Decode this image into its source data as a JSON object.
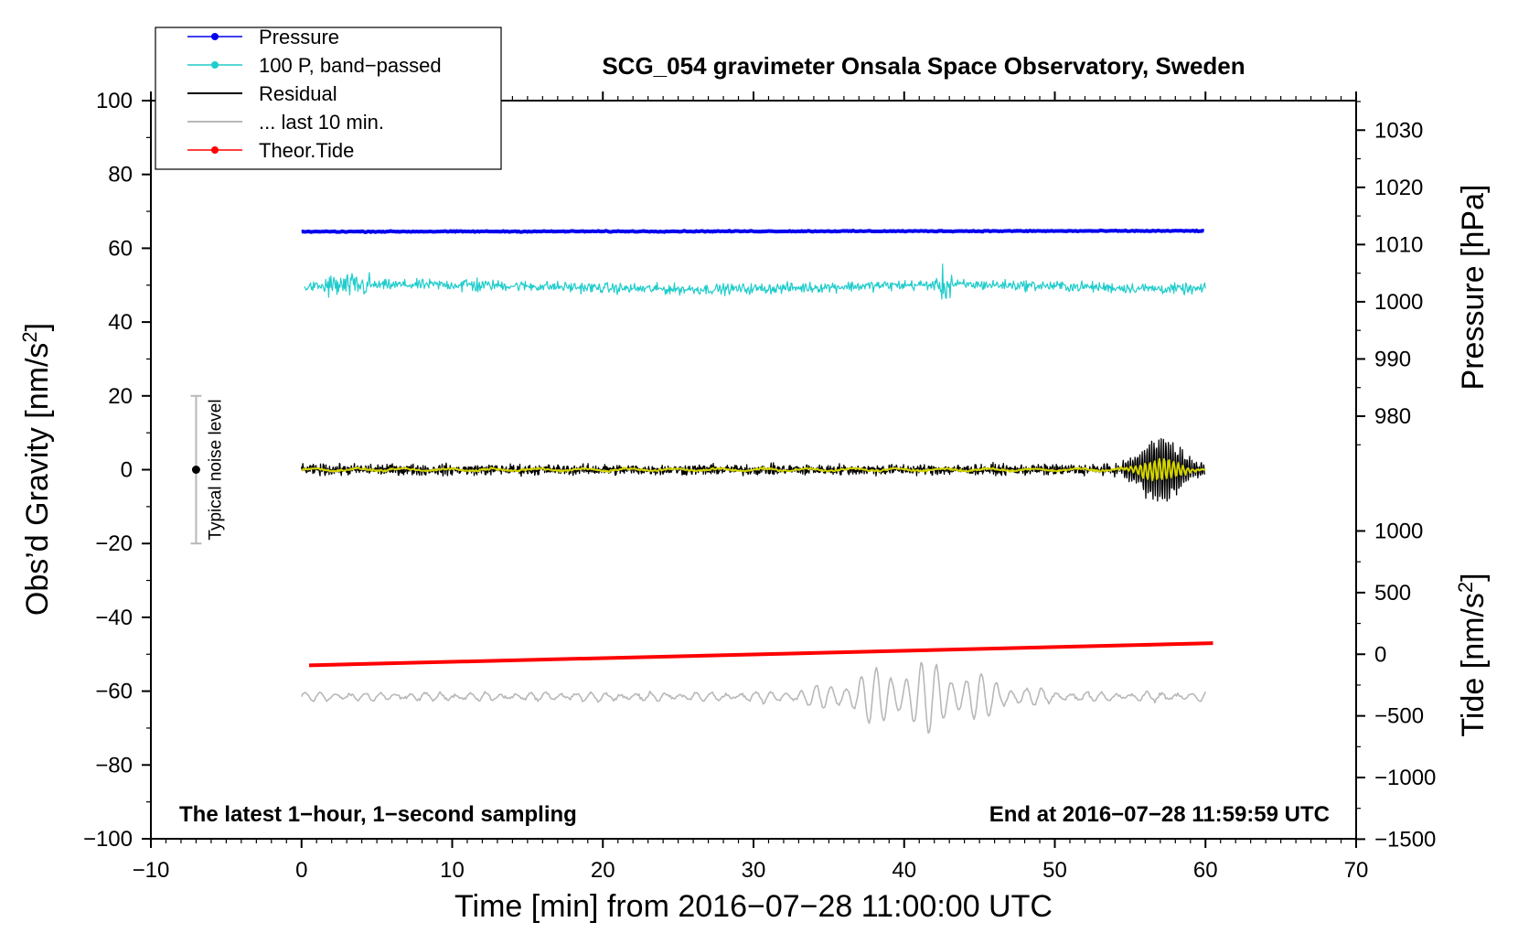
{
  "chart_data": {
    "type": "line",
    "title": "SCG_054 gravimeter Onsala Space Observatory, Sweden",
    "xlabel": "Time [min] from 2016−07−28 11:00:00 UTC",
    "ylabel_left": "Obs'd Gravity [nm/s²]",
    "ylabel_right_top": "Pressure [hPa]",
    "ylabel_right_bottom": "Tide [nm/s²]",
    "xlim": [
      -10,
      70
    ],
    "ylim": [
      -100,
      100
    ],
    "xticks": [
      -10,
      0,
      10,
      20,
      30,
      40,
      50,
      60,
      70
    ],
    "xtick_labels": [
      "−10",
      "0",
      "10",
      "20",
      "30",
      "40",
      "50",
      "60",
      "70"
    ],
    "yticks": [
      100,
      80,
      60,
      40,
      20,
      0,
      -20,
      -40,
      -60,
      -80,
      -100
    ],
    "ytick_labels": [
      "100",
      "80",
      "60",
      "40",
      "20",
      "0",
      "−20",
      "−40",
      "−60",
      "−80",
      "−100"
    ],
    "pressure_axis": {
      "ticks": [
        1030,
        1020,
        1010,
        1000,
        990,
        980
      ],
      "tick_labels": [
        "1030",
        "1020",
        "1010",
        "1000",
        "990",
        "980"
      ],
      "gravity_at_1030": 92,
      "gravity_per_hpa": 1.55
    },
    "tide_axis": {
      "ticks": [
        1000,
        500,
        0,
        -500,
        -1000,
        -1500
      ],
      "tick_labels": [
        "1000",
        "500",
        "0",
        "−500",
        "−1000",
        "−1500"
      ],
      "gravity_at_0": -50,
      "gravity_per_unit": 0.0334
    },
    "legend": {
      "placement": "top-left",
      "entries": [
        {
          "label": "Pressure",
          "color": "#0000ee",
          "marker": true
        },
        {
          "label": "100 P, band−passed",
          "color": "#20cccc",
          "marker": true
        },
        {
          "label": "Residual",
          "color": "#000000",
          "marker": false
        },
        {
          "label": "... last 10 min.",
          "color": "#b8b8b8",
          "marker": false
        },
        {
          "label": "Theor.Tide",
          "color": "#ff0000",
          "marker": true
        }
      ]
    },
    "series": [
      {
        "name": "Pressure",
        "color": "#0000ee",
        "x_start": 0,
        "x_end": 60,
        "level_start": 64.5,
        "level_end": 64.7,
        "noise": 0.1
      },
      {
        "name": "100 P, band−passed",
        "color": "#20cccc",
        "x_start": 0.2,
        "x_end": 60,
        "level": 49.5,
        "noise": 1.0
      },
      {
        "name": "Residual",
        "color": "#000000",
        "x_start": 0,
        "x_end": 60,
        "level": 0,
        "noise": 1.2,
        "burst_center": 57,
        "burst_amplitude": 8
      },
      {
        "name": "Residual smoothed",
        "color": "#d4d400",
        "x_start": 0,
        "x_end": 60,
        "level": 0,
        "noise": 0.4,
        "burst_center": 57,
        "burst_amplitude": 3
      },
      {
        "name": "... last 10 min.",
        "color": "#b8b8b8",
        "x_start": 0,
        "x_end": 60,
        "level": -61.5,
        "noise": 1.2,
        "burst_center": 41,
        "burst_amplitude": 9
      },
      {
        "name": "Theor.Tide",
        "color": "#ff0000",
        "x_start": 0.5,
        "x_end": 60.5,
        "values": [
          -53,
          -47
        ]
      }
    ],
    "noise_bar": {
      "label": "Typical noise level",
      "x": -7,
      "y": 0,
      "y_min": -20,
      "y_max": 20
    },
    "annotations": {
      "left": "The latest 1−hour, 1−second sampling",
      "right": "End at 2016−07−28 11:59:59 UTC"
    }
  }
}
